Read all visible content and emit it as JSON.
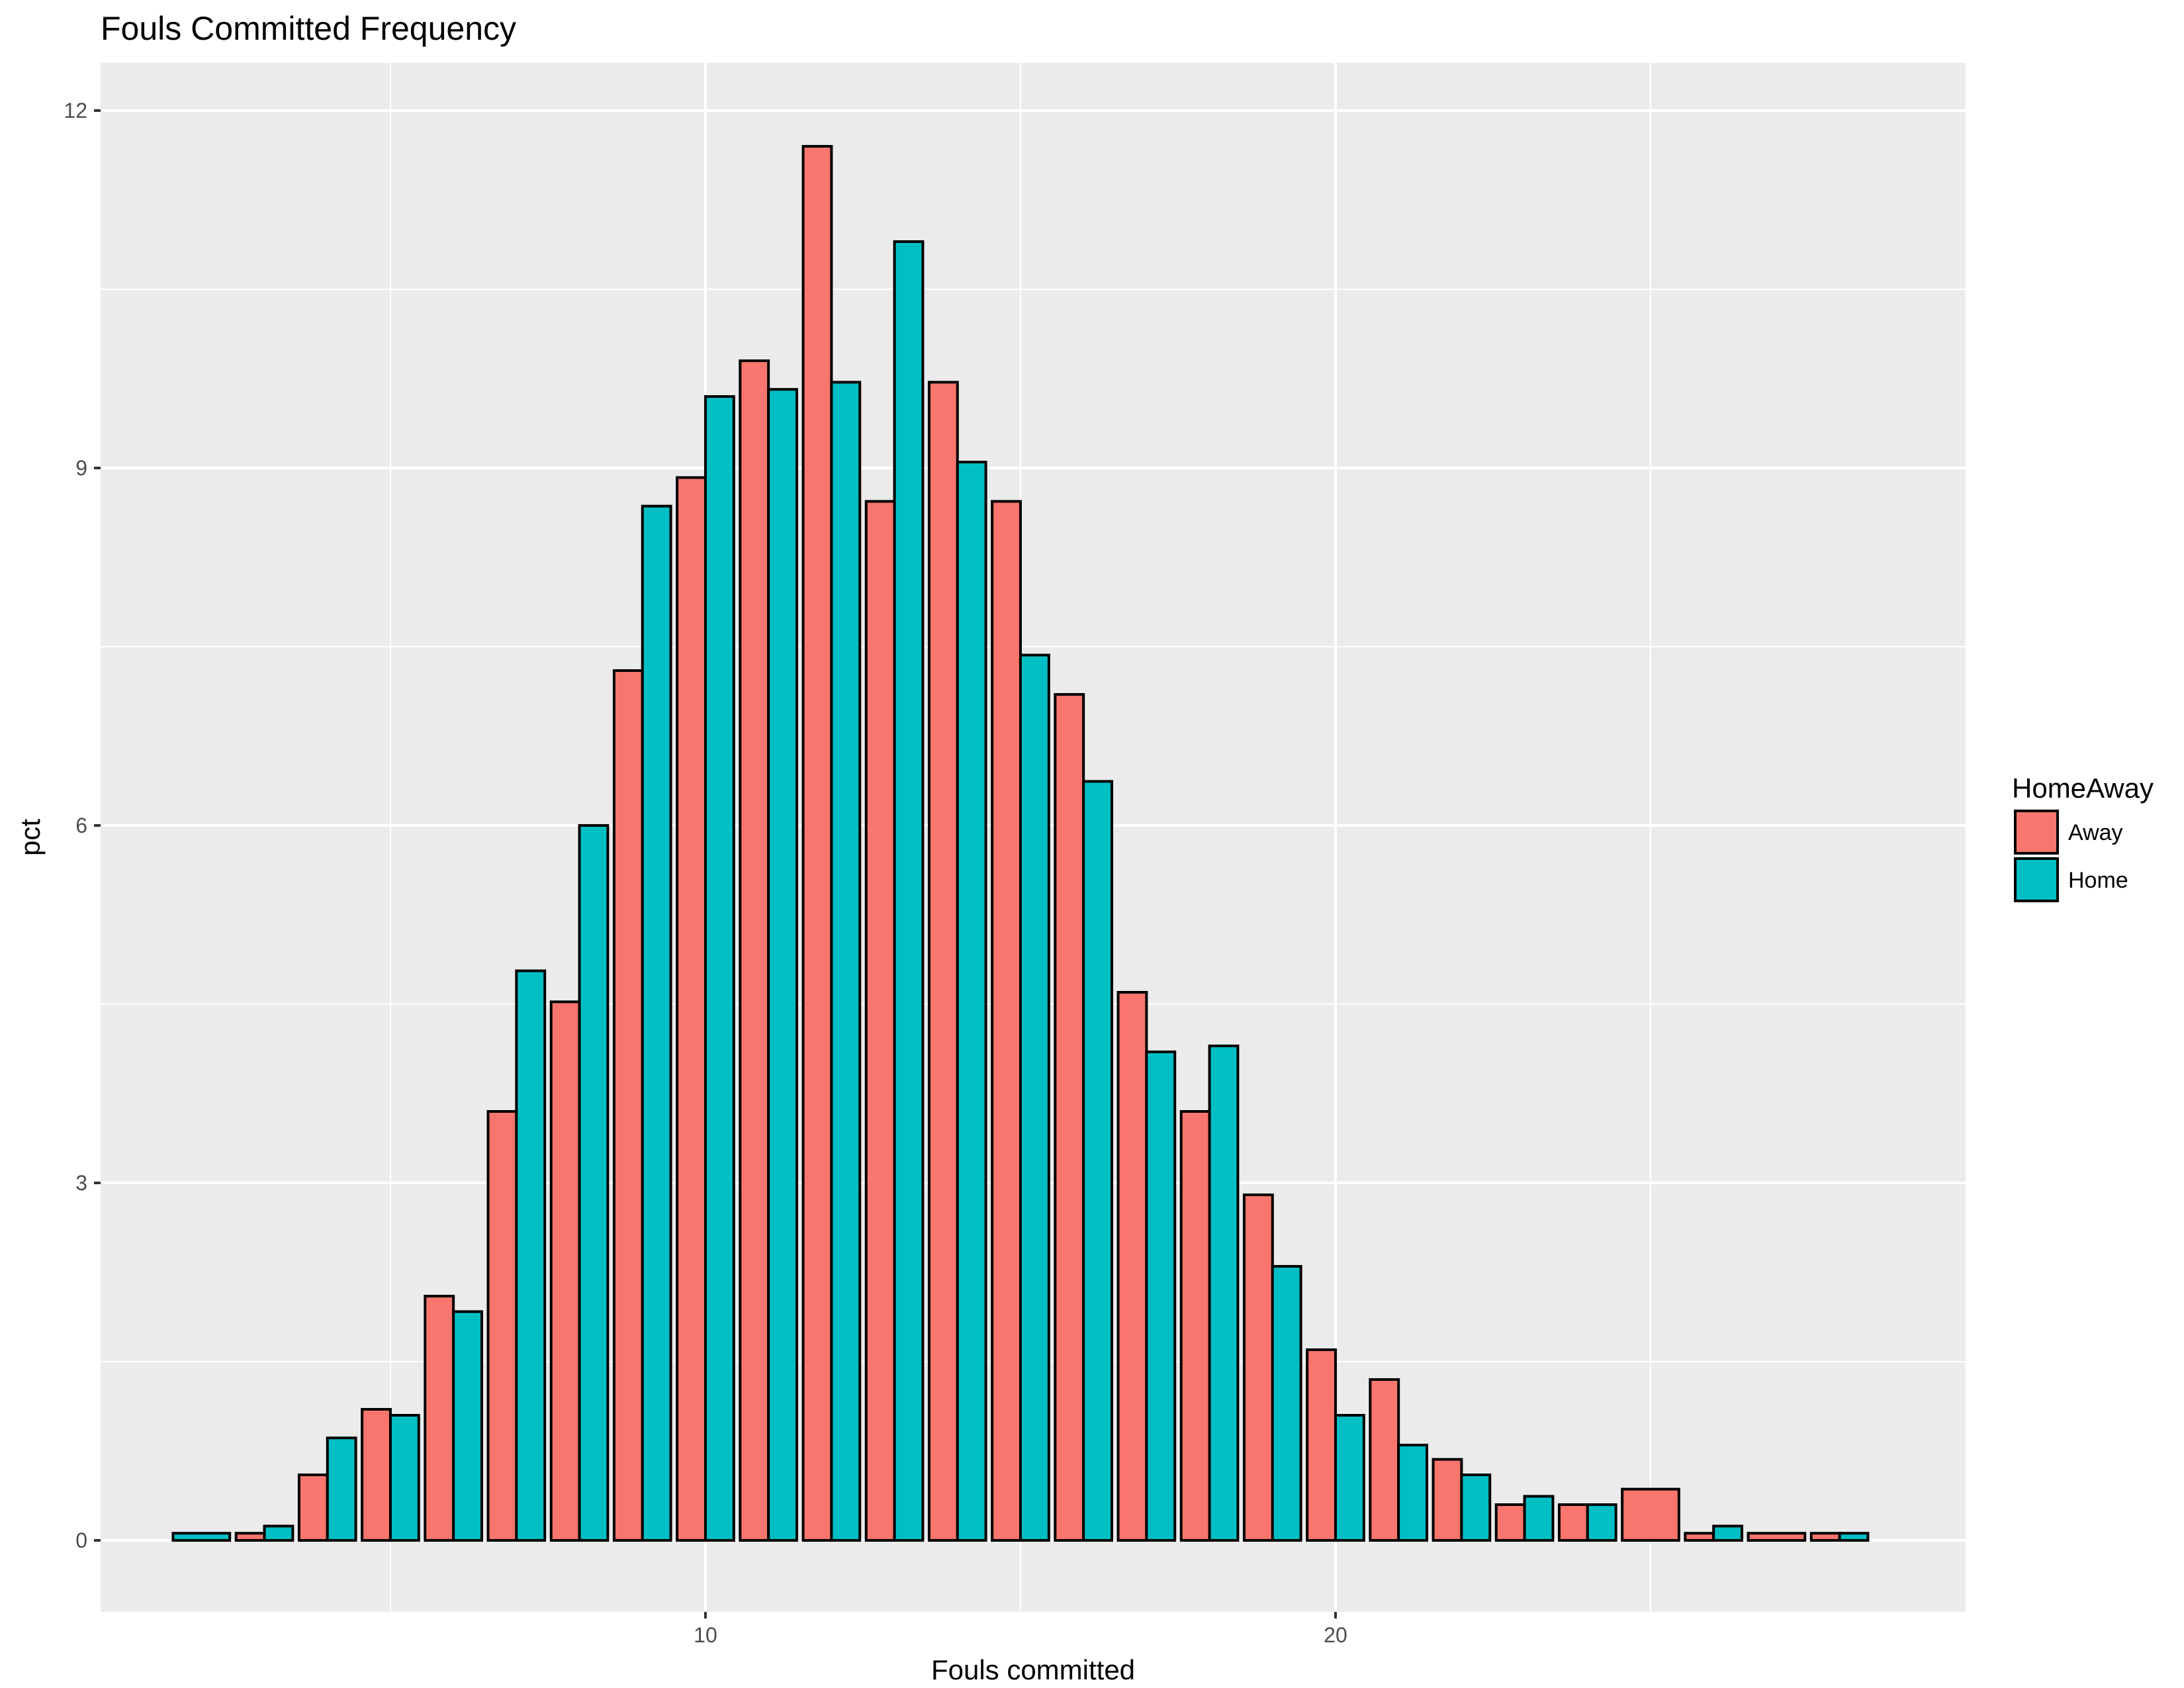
{
  "chart_data": {
    "type": "bar",
    "title": "Fouls Committed Frequency",
    "xlabel": "Fouls committed",
    "ylabel": "pct",
    "xlim": [
      0.4,
      30.0
    ],
    "ylim": [
      -0.6,
      12.4
    ],
    "x_ticks": [
      10,
      20
    ],
    "y_ticks": [
      0,
      3,
      6,
      9,
      12
    ],
    "grid": true,
    "legend": {
      "title": "HomeAway",
      "position": "right"
    },
    "x": [
      2,
      3,
      4,
      5,
      6,
      7,
      8,
      9,
      10,
      11,
      12,
      13,
      14,
      15,
      16,
      17,
      18,
      19,
      20,
      21,
      22,
      23,
      24,
      25,
      26,
      27,
      28
    ],
    "series": [
      {
        "name": "Away",
        "color": "#F8766D",
        "values": [
          null,
          0.06,
          0.55,
          1.1,
          2.05,
          3.6,
          4.52,
          7.3,
          8.92,
          9.9,
          11.7,
          8.72,
          9.72,
          8.72,
          7.1,
          4.6,
          3.6,
          2.9,
          1.6,
          1.35,
          0.68,
          0.3,
          0.3,
          0.43,
          0.06,
          0.06,
          0.06
        ]
      },
      {
        "name": "Home",
        "color": "#00BFC4",
        "values": [
          0.06,
          0.12,
          0.86,
          1.05,
          1.92,
          4.78,
          6.0,
          8.68,
          9.6,
          9.66,
          9.72,
          10.9,
          9.05,
          7.43,
          6.37,
          4.1,
          4.15,
          2.3,
          1.05,
          0.8,
          0.55,
          0.37,
          0.3,
          null,
          0.12,
          null,
          0.06
        ]
      }
    ]
  }
}
